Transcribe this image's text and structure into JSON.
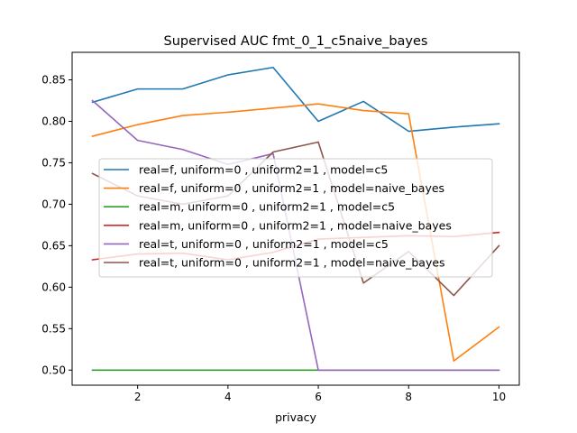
{
  "chart_data": {
    "type": "line",
    "title": "Supervised AUC fmt_0_1_c5naive_bayes",
    "xlabel": "privacy",
    "ylabel": "",
    "xlim": [
      0.55,
      10.45
    ],
    "ylim": [
      0.4818,
      0.8832
    ],
    "xticks": [
      2,
      4,
      6,
      8,
      10
    ],
    "yticks": [
      0.5,
      0.55,
      0.6,
      0.65,
      0.7,
      0.75,
      0.8,
      0.85
    ],
    "ytick_labels": [
      "0.50",
      "0.55",
      "0.60",
      "0.65",
      "0.70",
      "0.75",
      "0.80",
      "0.85"
    ],
    "grid": false,
    "legend_position": "center-left",
    "x": [
      1,
      2,
      3,
      4,
      5,
      6,
      7,
      8,
      9,
      10
    ],
    "series": [
      {
        "name": "real=f, uniform=0 , uniform2=1 , model=c5",
        "color": "#1f77b4",
        "values": [
          0.823,
          0.839,
          0.839,
          0.856,
          0.865,
          0.8,
          0.824,
          0.788,
          0.793,
          0.797
        ]
      },
      {
        "name": "real=f, uniform=0 , uniform2=1 , model=naive_bayes",
        "color": "#ff7f0e",
        "values": [
          0.782,
          0.796,
          0.807,
          0.811,
          0.816,
          0.821,
          0.813,
          0.809,
          0.511,
          0.552
        ]
      },
      {
        "name": "real=m, uniform=0 , uniform2=1 , model=c5",
        "color": "#2ca02c",
        "values": [
          0.5,
          0.5,
          0.5,
          0.5,
          0.5,
          0.5,
          0.5,
          0.5,
          0.5,
          0.5
        ]
      },
      {
        "name": "real=m, uniform=0 , uniform2=1 , model=naive_bayes",
        "color": "#d62728",
        "values": [
          0.633,
          0.64,
          0.641,
          0.633,
          0.642,
          0.658,
          0.66,
          0.662,
          0.661,
          0.666
        ]
      },
      {
        "name": "real=t, uniform=0 , uniform2=1 , model=c5",
        "color": "#9467bd",
        "values": [
          0.825,
          0.777,
          0.766,
          0.748,
          0.761,
          0.5,
          0.5,
          0.5,
          0.5,
          0.5
        ]
      },
      {
        "name": "real=t, uniform=0 , uniform2=1 , model=naive_bayes",
        "color": "#8c564b",
        "values": [
          0.737,
          0.71,
          0.7,
          0.71,
          0.763,
          0.775,
          0.605,
          0.643,
          0.59,
          0.65
        ]
      }
    ]
  }
}
